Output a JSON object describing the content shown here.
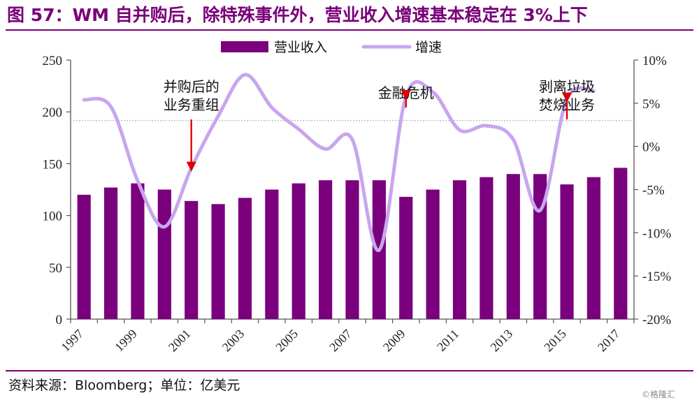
{
  "title": "图 57：WM 自并购后，除特殊事件外，营业收入增速基本稳定在 3%上下",
  "source": "资料来源：Bloomberg；单位：亿美元",
  "watermark": "©格隆汇",
  "colors": {
    "brand": "#7a0079",
    "bar": "#7b007d",
    "line": "#c8a6ee",
    "arrow": "#e00000",
    "reference_line": "#bdbdbd"
  },
  "chart_data": {
    "type": "bar",
    "title": "",
    "xlabel": "",
    "ylabel": "",
    "categories": [
      "1997",
      "1998",
      "1999",
      "2000",
      "2001",
      "2002",
      "2003",
      "2004",
      "2005",
      "2006",
      "2007",
      "2008",
      "2009",
      "2010",
      "2011",
      "2012",
      "2013",
      "2014",
      "2015",
      "2016",
      "2017"
    ],
    "x_tick_labels": [
      "1997",
      "1999",
      "2001",
      "2003",
      "2005",
      "2007",
      "2009",
      "2011",
      "2013",
      "2015",
      "2017"
    ],
    "ylim": [
      0,
      250
    ],
    "y_ticks": [
      "0",
      "50",
      "100",
      "150",
      "200",
      "250"
    ],
    "y2lim": [
      -0.2,
      0.1
    ],
    "y2_ticks": [
      "-20%",
      "-15%",
      "-10%",
      "-5%",
      "0%",
      "5%",
      "10%"
    ],
    "grid": false,
    "reference_line_y2": 0.03,
    "legend_position": "top",
    "series": [
      {
        "name": "营业收入",
        "kind": "bar",
        "axis": "left",
        "values": [
          120,
          127,
          131,
          125,
          114,
          111,
          117,
          125,
          131,
          134,
          134,
          134,
          118,
          125,
          134,
          137,
          140,
          140,
          130,
          137,
          146
        ]
      },
      {
        "name": "增速",
        "kind": "line",
        "axis": "right",
        "values": [
          0.054,
          0.046,
          -0.04,
          -0.093,
          -0.025,
          0.035,
          0.083,
          0.045,
          0.02,
          -0.003,
          0.008,
          -0.12,
          0.058,
          0.063,
          0.019,
          0.024,
          0.008,
          -0.074,
          0.055,
          0.064,
          null
        ]
      }
    ],
    "annotations": [
      {
        "label_lines": [
          "并购后的",
          "业务重组"
        ],
        "year": "2001"
      },
      {
        "label_lines": [
          "金融危机"
        ],
        "year": "2009"
      },
      {
        "label_lines": [
          "剥离垃圾",
          "焚烧业务"
        ],
        "year": "2015"
      }
    ]
  }
}
